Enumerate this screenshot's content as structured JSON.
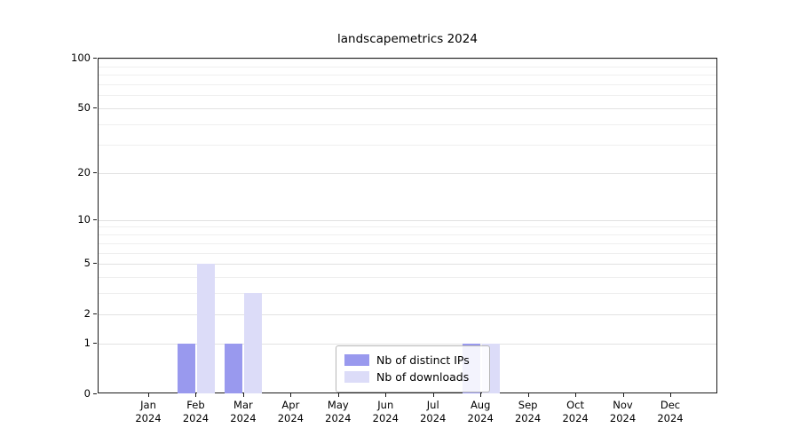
{
  "chart_data": {
    "type": "bar",
    "title": "landscapemetrics 2024",
    "categories": [
      "Jan",
      "Feb",
      "Mar",
      "Apr",
      "May",
      "Jun",
      "Jul",
      "Aug",
      "Sep",
      "Oct",
      "Nov",
      "Dec"
    ],
    "category_year": "2024",
    "series": [
      {
        "name": "Nb of distinct IPs",
        "color": "#9999ee",
        "values": [
          0,
          1,
          1,
          0,
          0,
          0,
          0,
          1,
          0,
          0,
          0,
          0
        ]
      },
      {
        "name": "Nb of downloads",
        "color": "#dcdcf8",
        "values": [
          0,
          5,
          3,
          0,
          0,
          0,
          0,
          1,
          0,
          0,
          0,
          0
        ]
      }
    ],
    "xlabel": "",
    "ylabel": "",
    "y_scale": "log1p",
    "ylim": [
      0,
      100
    ],
    "y_ticks": [
      0,
      1,
      2,
      5,
      10,
      20,
      50,
      100
    ],
    "y_minor_ticks": [
      3,
      4,
      6,
      7,
      8,
      9,
      30,
      40,
      60,
      70,
      80,
      90
    ],
    "grid": "horizontal",
    "legend_position": "inside-bottom-center"
  }
}
